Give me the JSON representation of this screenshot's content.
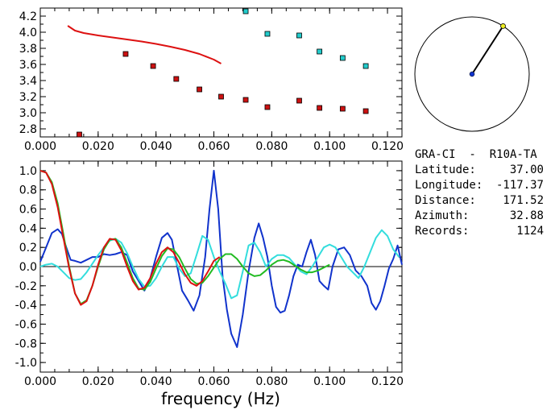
{
  "station_header": "GRA-CI  -  R10A-TA",
  "info": [
    {
      "label": "Latitude:",
      "value": "37.00"
    },
    {
      "label": "Longitude:",
      "value": "-117.37"
    },
    {
      "label": "Distance:",
      "value": "171.52"
    },
    {
      "label": "Azimuth:",
      "value": "32.88"
    },
    {
      "label": "Records:",
      "value": "1124"
    }
  ],
  "azimuth_deg": 32.88,
  "chart_data": [
    {
      "type": "scatter",
      "xlim": [
        0.0,
        0.125
      ],
      "ylim": [
        2.7,
        4.3
      ],
      "x_ticks": [
        "0.000",
        "0.020",
        "0.040",
        "0.060",
        "0.080",
        "0.100",
        "0.120"
      ],
      "y_ticks": [
        "2.8",
        "3.0",
        "3.2",
        "3.4",
        "3.6",
        "3.8",
        "4.0",
        "4.2"
      ],
      "xlabel": "",
      "ylabel": "",
      "series": [
        {
          "color": "#cc1111",
          "marker": "square",
          "x": [
            0.0135,
            0.0295,
            0.039,
            0.047,
            0.055,
            0.0625,
            0.071,
            0.0785,
            0.0895,
            0.0965,
            0.1045,
            0.1125
          ],
          "y": [
            2.73,
            3.73,
            3.58,
            3.42,
            3.29,
            3.2,
            3.16,
            3.07,
            3.15,
            3.06,
            3.05,
            3.02
          ]
        },
        {
          "color": "#22cccc",
          "marker": "square",
          "x": [
            0.071,
            0.0785,
            0.0895,
            0.0965,
            0.1045,
            0.1125
          ],
          "y": [
            4.26,
            3.98,
            3.96,
            3.76,
            3.68,
            3.58
          ]
        },
        {
          "color": "#dd1111",
          "marker": "line",
          "x": [
            0.0095,
            0.012,
            0.015,
            0.02,
            0.025,
            0.03,
            0.035,
            0.04,
            0.045,
            0.05,
            0.055,
            0.06,
            0.0625
          ],
          "y": [
            4.08,
            4.02,
            3.99,
            3.96,
            3.935,
            3.91,
            3.885,
            3.855,
            3.82,
            3.78,
            3.73,
            3.66,
            3.61
          ]
        }
      ]
    },
    {
      "type": "line",
      "xlim": [
        0.0,
        0.125
      ],
      "ylim": [
        -1.1,
        1.1
      ],
      "x_ticks": [
        "0.000",
        "0.020",
        "0.040",
        "0.060",
        "0.080",
        "0.100",
        "0.120"
      ],
      "y_ticks": [
        "1.0",
        "0.8",
        "0.6",
        "0.4",
        "0.2",
        "0.0",
        "-0.2",
        "-0.4",
        "-0.6",
        "-0.8",
        "-1.0"
      ],
      "xlabel": "frequency (Hz)",
      "ylabel": "",
      "series": [
        {
          "color": "#1133cc",
          "x": [
            0.0,
            0.002,
            0.004,
            0.006,
            0.0075,
            0.009,
            0.0105,
            0.012,
            0.014,
            0.016,
            0.018,
            0.02,
            0.022,
            0.024,
            0.026,
            0.028,
            0.03,
            0.032,
            0.034,
            0.036,
            0.038,
            0.04,
            0.042,
            0.044,
            0.0455,
            0.047,
            0.049,
            0.051,
            0.053,
            0.055,
            0.057,
            0.0585,
            0.06,
            0.0615,
            0.063,
            0.0645,
            0.066,
            0.068,
            0.07,
            0.072,
            0.074,
            0.0755,
            0.077,
            0.0785,
            0.08,
            0.0815,
            0.083,
            0.0845,
            0.086,
            0.0875,
            0.089,
            0.0905,
            0.092,
            0.0935,
            0.095,
            0.0965,
            0.098,
            0.0995,
            0.101,
            0.103,
            0.105,
            0.107,
            0.109,
            0.111,
            0.113,
            0.1145,
            0.116,
            0.1175,
            0.119,
            0.1205,
            0.122,
            0.1235,
            0.125
          ],
          "y": [
            0.05,
            0.2,
            0.35,
            0.39,
            0.34,
            0.2,
            0.07,
            0.06,
            0.04,
            0.07,
            0.1,
            0.1,
            0.13,
            0.12,
            0.13,
            0.15,
            0.12,
            -0.05,
            -0.15,
            -0.25,
            -0.12,
            0.1,
            0.3,
            0.35,
            0.28,
            0.05,
            -0.25,
            -0.35,
            -0.46,
            -0.3,
            0.1,
            0.6,
            1.0,
            0.6,
            -0.1,
            -0.45,
            -0.7,
            -0.84,
            -0.5,
            -0.05,
            0.3,
            0.45,
            0.3,
            0.1,
            -0.2,
            -0.42,
            -0.48,
            -0.46,
            -0.3,
            -0.1,
            0.02,
            0.0,
            0.15,
            0.28,
            0.12,
            -0.15,
            -0.2,
            -0.24,
            0.0,
            0.18,
            0.2,
            0.12,
            -0.04,
            -0.1,
            -0.2,
            -0.38,
            -0.45,
            -0.36,
            -0.2,
            -0.02,
            0.08,
            0.22,
            0.02
          ]
        },
        {
          "color": "#33dddd",
          "x": [
            0.0,
            0.002,
            0.004,
            0.006,
            0.008,
            0.01,
            0.012,
            0.014,
            0.016,
            0.018,
            0.02,
            0.022,
            0.024,
            0.026,
            0.028,
            0.03,
            0.032,
            0.034,
            0.036,
            0.038,
            0.04,
            0.042,
            0.044,
            0.046,
            0.048,
            0.05,
            0.052,
            0.054,
            0.056,
            0.058,
            0.06,
            0.062,
            0.064,
            0.066,
            0.068,
            0.07,
            0.072,
            0.074,
            0.076,
            0.078,
            0.08,
            0.082,
            0.084,
            0.086,
            0.088,
            0.09,
            0.092,
            0.094,
            0.096,
            0.098,
            0.1,
            0.102,
            0.104,
            0.106,
            0.108,
            0.11,
            0.112,
            0.114,
            0.116,
            0.118,
            0.12,
            0.122,
            0.124
          ],
          "y": [
            0.0,
            0.02,
            0.03,
            0.0,
            -0.06,
            -0.12,
            -0.14,
            -0.13,
            -0.06,
            0.03,
            0.12,
            0.2,
            0.27,
            0.29,
            0.25,
            0.14,
            0.0,
            -0.13,
            -0.21,
            -0.2,
            -0.12,
            0.0,
            0.1,
            0.1,
            -0.02,
            -0.1,
            -0.07,
            0.12,
            0.32,
            0.28,
            0.1,
            -0.05,
            -0.18,
            -0.33,
            -0.3,
            -0.05,
            0.22,
            0.25,
            0.15,
            0.0,
            0.08,
            0.12,
            0.12,
            0.09,
            0.02,
            -0.05,
            -0.08,
            0.0,
            0.1,
            0.2,
            0.23,
            0.2,
            0.1,
            0.0,
            -0.06,
            -0.12,
            0.0,
            0.15,
            0.3,
            0.38,
            0.32,
            0.18,
            0.1
          ]
        },
        {
          "color": "#22bb22",
          "x": [
            0.0,
            0.002,
            0.004,
            0.006,
            0.008,
            0.01,
            0.012,
            0.014,
            0.016,
            0.018,
            0.02,
            0.022,
            0.024,
            0.026,
            0.028,
            0.03,
            0.032,
            0.034,
            0.036,
            0.038,
            0.04,
            0.042,
            0.044,
            0.046,
            0.048,
            0.05,
            0.052,
            0.054,
            0.056,
            0.058,
            0.06,
            0.062,
            0.064,
            0.066,
            0.068,
            0.07,
            0.072,
            0.074,
            0.076,
            0.078,
            0.08,
            0.082,
            0.084,
            0.086,
            0.088,
            0.09,
            0.092,
            0.094,
            0.096,
            0.098,
            0.1
          ],
          "y": [
            1.0,
            0.98,
            0.88,
            0.66,
            0.34,
            0.0,
            -0.28,
            -0.39,
            -0.35,
            -0.2,
            0.0,
            0.18,
            0.28,
            0.29,
            0.2,
            0.04,
            -0.12,
            -0.23,
            -0.24,
            -0.16,
            -0.02,
            0.11,
            0.19,
            0.18,
            0.1,
            -0.02,
            -0.13,
            -0.18,
            -0.17,
            -0.1,
            -0.01,
            0.08,
            0.13,
            0.13,
            0.08,
            0.0,
            -0.07,
            -0.1,
            -0.09,
            -0.04,
            0.02,
            0.06,
            0.07,
            0.05,
            0.01,
            -0.03,
            -0.06,
            -0.06,
            -0.04,
            -0.01,
            0.02
          ]
        },
        {
          "color": "#dd1111",
          "x": [
            0.0,
            0.002,
            0.004,
            0.006,
            0.008,
            0.01,
            0.012,
            0.014,
            0.016,
            0.018,
            0.02,
            0.022,
            0.024,
            0.026,
            0.028,
            0.03,
            0.032,
            0.034,
            0.036,
            0.038,
            0.04,
            0.042,
            0.044,
            0.046,
            0.048,
            0.05,
            0.052,
            0.054,
            0.056,
            0.058,
            0.06,
            0.062
          ],
          "y": [
            1.0,
            0.98,
            0.86,
            0.62,
            0.3,
            -0.02,
            -0.28,
            -0.4,
            -0.36,
            -0.2,
            0.02,
            0.2,
            0.29,
            0.28,
            0.17,
            0.0,
            -0.15,
            -0.24,
            -0.22,
            -0.12,
            0.03,
            0.15,
            0.2,
            0.15,
            0.04,
            -0.08,
            -0.17,
            -0.2,
            -0.15,
            -0.05,
            0.06,
            0.1
          ]
        }
      ]
    }
  ]
}
